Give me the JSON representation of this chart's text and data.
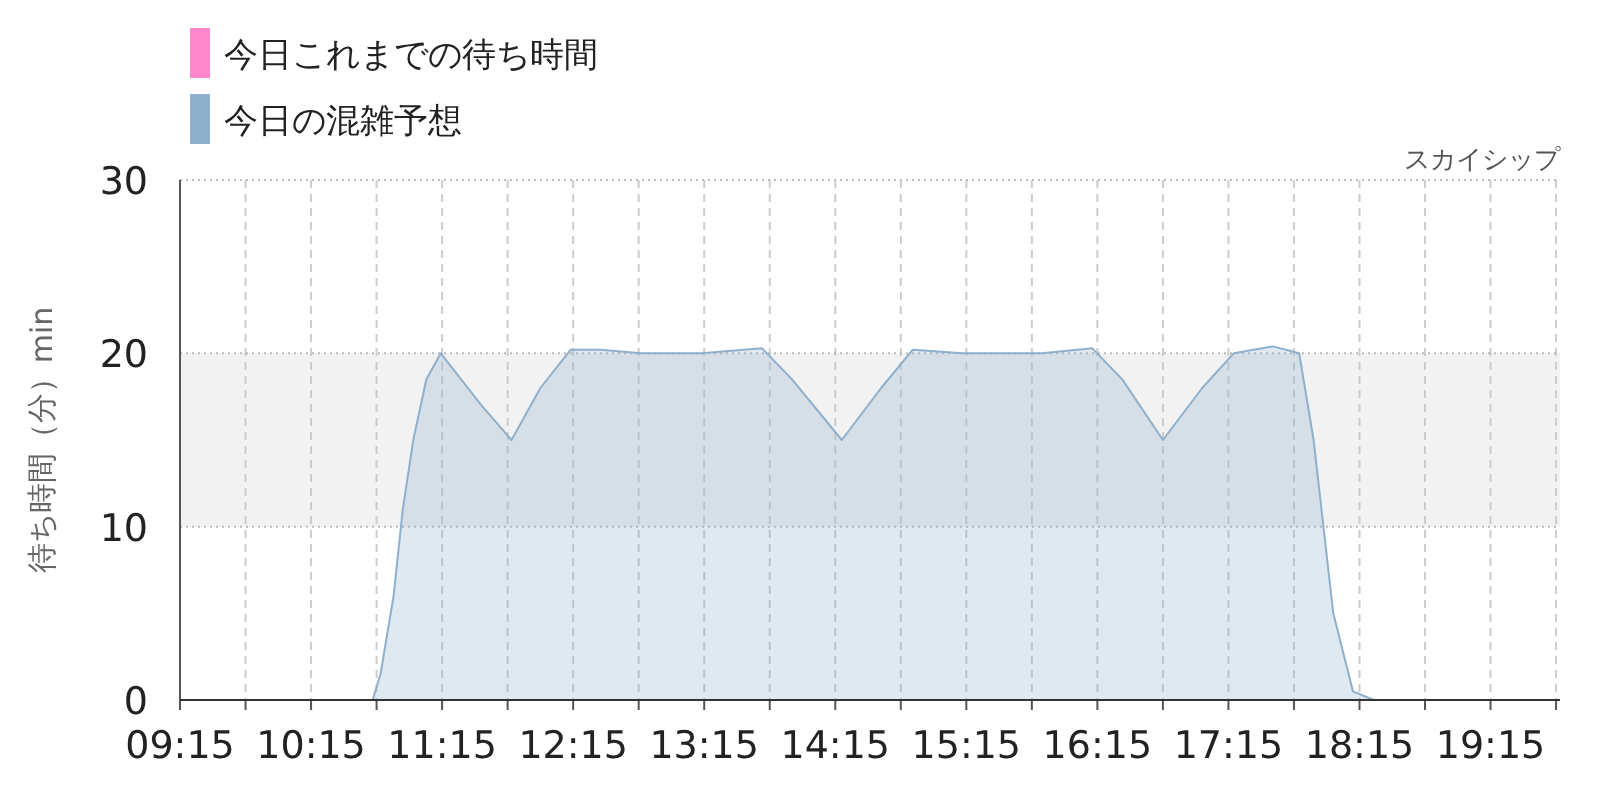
{
  "chart_data": {
    "type": "area",
    "subtitle": "スカイシップ",
    "ylabel": "待ち時間（分）min",
    "x": [
      9.25,
      10.5,
      10.65,
      10.72,
      10.78,
      10.88,
      10.95,
      11.03,
      11.13,
      11.24,
      11.55,
      11.78,
      12.0,
      12.23,
      12.46,
      12.77,
      13.23,
      13.69,
      13.92,
      14.3,
      14.6,
      14.84,
      15.22,
      15.83,
      16.21,
      16.44,
      16.75,
      17.05,
      17.29,
      17.59,
      17.79,
      17.9,
      18.05,
      18.2,
      18.36,
      19.78
    ],
    "series": [
      {
        "name": "今日これまでの待ち時間",
        "color": "#ff88cc",
        "values": [
          null,
          null,
          null,
          null,
          null,
          null,
          null,
          null,
          null,
          null,
          null,
          null,
          null,
          null,
          null,
          null,
          null,
          null,
          null,
          null,
          null,
          null,
          null,
          null,
          null,
          null,
          null,
          null,
          null,
          null,
          null,
          null,
          null,
          null,
          null,
          null
        ]
      },
      {
        "name": "今日の混雑予想",
        "color": "#8fb0cc",
        "values": [
          0,
          0,
          0,
          0,
          1.5,
          6,
          11,
          15,
          18.5,
          20,
          17,
          15,
          18,
          20.2,
          20.2,
          20,
          20,
          20.3,
          18.5,
          15,
          18,
          20.2,
          20,
          20,
          20.3,
          18.5,
          15,
          18,
          20,
          20.4,
          20,
          15,
          5,
          0.5,
          0,
          0
        ]
      }
    ],
    "xlim": [
      9.25,
      19.78
    ],
    "xticks": [
      {
        "value": 9.25,
        "label": "09:15"
      },
      {
        "value": 9.75,
        "label": null
      },
      {
        "value": 10.25,
        "label": "10:15"
      },
      {
        "value": 10.75,
        "label": null
      },
      {
        "value": 11.25,
        "label": "11:15"
      },
      {
        "value": 11.75,
        "label": null
      },
      {
        "value": 12.25,
        "label": "12:15"
      },
      {
        "value": 12.75,
        "label": null
      },
      {
        "value": 13.25,
        "label": "13:15"
      },
      {
        "value": 13.75,
        "label": null
      },
      {
        "value": 14.25,
        "label": "14:15"
      },
      {
        "value": 14.75,
        "label": null
      },
      {
        "value": 15.25,
        "label": "15:15"
      },
      {
        "value": 15.75,
        "label": null
      },
      {
        "value": 16.25,
        "label": "16:15"
      },
      {
        "value": 16.75,
        "label": null
      },
      {
        "value": 17.25,
        "label": "17:15"
      },
      {
        "value": 17.75,
        "label": null
      },
      {
        "value": 18.25,
        "label": "18:15"
      },
      {
        "value": 18.75,
        "label": null
      },
      {
        "value": 19.25,
        "label": "19:15"
      },
      {
        "value": 19.75,
        "label": null
      }
    ],
    "ylim": [
      0,
      30
    ],
    "yticks": [
      0,
      10,
      20,
      30
    ],
    "bands": [
      {
        "axis": "y",
        "from": 10,
        "to": 20,
        "color": "#f2f2f2"
      }
    ],
    "grid": true,
    "legend": "top left"
  }
}
